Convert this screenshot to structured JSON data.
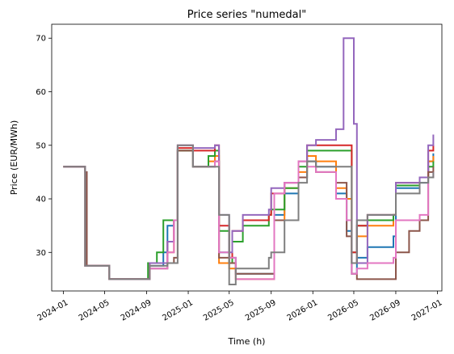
{
  "chart_data": {
    "type": "line",
    "title": "Price series \"numedal\"",
    "xlabel": "Time (h)",
    "ylabel": "Price (EUR/MWh)",
    "xlim": [
      "2023-11-28",
      "2027-01-14"
    ],
    "ylim": [
      22.8,
      72.6
    ],
    "x_ticks": [
      {
        "date": "2024-01-01",
        "label": "2024-01"
      },
      {
        "date": "2024-05-01",
        "label": "2024-05"
      },
      {
        "date": "2024-09-01",
        "label": "2024-09"
      },
      {
        "date": "2025-01-01",
        "label": "2025-01"
      },
      {
        "date": "2025-05-01",
        "label": "2025-05"
      },
      {
        "date": "2025-09-01",
        "label": "2025-09"
      },
      {
        "date": "2026-01-01",
        "label": "2026-01"
      },
      {
        "date": "2026-05-01",
        "label": "2026-05"
      },
      {
        "date": "2026-09-01",
        "label": "2026-09"
      },
      {
        "date": "2027-01-01",
        "label": "2027-01"
      }
    ],
    "y_ticks": [
      30,
      40,
      50,
      60,
      70
    ],
    "grid": false,
    "legend": "none",
    "line_style": "step",
    "series": [
      {
        "color": "#1f77b4",
        "points": [
          [
            "2024-01-01",
            46
          ],
          [
            "2024-03-01",
            46
          ],
          [
            "2024-03-05",
            27.5
          ],
          [
            "2024-05-10",
            27.5
          ],
          [
            "2024-05-15",
            25
          ],
          [
            "2024-09-01",
            25
          ],
          [
            "2024-09-10",
            27.5
          ],
          [
            "2024-10-20",
            30
          ],
          [
            "2024-11-01",
            35
          ],
          [
            "2024-11-20",
            36
          ],
          [
            "2024-12-01",
            49
          ],
          [
            "2025-01-10",
            49
          ],
          [
            "2025-01-15",
            46
          ],
          [
            "2025-03-20",
            47
          ],
          [
            "2025-04-01",
            30
          ],
          [
            "2025-05-01",
            29
          ],
          [
            "2025-05-20",
            26
          ],
          [
            "2025-09-01",
            26
          ],
          [
            "2025-09-10",
            37
          ],
          [
            "2025-10-10",
            41
          ],
          [
            "2025-11-20",
            44
          ],
          [
            "2025-12-15",
            47
          ],
          [
            "2026-01-10",
            46
          ],
          [
            "2026-03-10",
            41
          ],
          [
            "2026-04-10",
            34
          ],
          [
            "2026-04-25",
            26
          ],
          [
            "2026-05-10",
            29
          ],
          [
            "2026-06-10",
            31
          ],
          [
            "2026-08-25",
            33
          ],
          [
            "2026-09-01",
            42
          ],
          [
            "2026-11-10",
            43
          ],
          [
            "2026-12-05",
            47
          ],
          [
            "2026-12-20",
            48.5
          ]
        ]
      },
      {
        "color": "#ff7f0e",
        "points": [
          [
            "2024-01-01",
            46
          ],
          [
            "2024-03-01",
            46
          ],
          [
            "2024-03-05",
            27.5
          ],
          [
            "2024-05-10",
            27.5
          ],
          [
            "2024-05-15",
            25
          ],
          [
            "2024-09-01",
            25
          ],
          [
            "2024-09-10",
            28
          ],
          [
            "2024-11-01",
            30
          ],
          [
            "2024-11-20",
            36
          ],
          [
            "2024-12-01",
            49
          ],
          [
            "2025-01-10",
            49
          ],
          [
            "2025-01-15",
            46
          ],
          [
            "2025-03-01",
            47
          ],
          [
            "2025-03-20",
            48
          ],
          [
            "2025-04-01",
            28
          ],
          [
            "2025-05-01",
            27
          ],
          [
            "2025-05-20",
            25
          ],
          [
            "2025-09-01",
            25
          ],
          [
            "2025-09-10",
            36
          ],
          [
            "2025-10-10",
            42
          ],
          [
            "2025-11-20",
            45
          ],
          [
            "2025-12-15",
            48
          ],
          [
            "2026-01-10",
            47
          ],
          [
            "2026-03-10",
            42
          ],
          [
            "2026-04-10",
            40
          ],
          [
            "2026-04-25",
            28
          ],
          [
            "2026-05-10",
            33
          ],
          [
            "2026-06-10",
            35
          ],
          [
            "2026-08-25",
            37
          ],
          [
            "2026-09-01",
            42.5
          ],
          [
            "2026-11-10",
            44
          ],
          [
            "2026-12-05",
            47
          ],
          [
            "2026-12-20",
            48
          ]
        ]
      },
      {
        "color": "#2ca02c",
        "points": [
          [
            "2024-01-01",
            46
          ],
          [
            "2024-03-01",
            46
          ],
          [
            "2024-03-05",
            27.5
          ],
          [
            "2024-05-10",
            27.5
          ],
          [
            "2024-05-15",
            25
          ],
          [
            "2024-09-01",
            25
          ],
          [
            "2024-09-05",
            28
          ],
          [
            "2024-10-01",
            30
          ],
          [
            "2024-10-20",
            36
          ],
          [
            "2024-12-01",
            49
          ],
          [
            "2025-01-10",
            49
          ],
          [
            "2025-01-15",
            46
          ],
          [
            "2025-03-01",
            48
          ],
          [
            "2025-03-20",
            49
          ],
          [
            "2025-04-01",
            34
          ],
          [
            "2025-05-01",
            28
          ],
          [
            "2025-05-10",
            32
          ],
          [
            "2025-06-10",
            35
          ],
          [
            "2025-08-25",
            37
          ],
          [
            "2025-09-01",
            38
          ],
          [
            "2025-10-10",
            42
          ],
          [
            "2025-11-20",
            46
          ],
          [
            "2025-12-15",
            49
          ],
          [
            "2026-01-10",
            49
          ],
          [
            "2026-04-10",
            49
          ],
          [
            "2026-04-25",
            30
          ],
          [
            "2026-05-10",
            35
          ],
          [
            "2026-06-10",
            36
          ],
          [
            "2026-08-25",
            37
          ],
          [
            "2026-09-01",
            42.5
          ],
          [
            "2026-11-10",
            44
          ],
          [
            "2026-12-05",
            46
          ],
          [
            "2026-12-20",
            47
          ]
        ]
      },
      {
        "color": "#d62728",
        "points": [
          [
            "2024-01-01",
            46
          ],
          [
            "2024-03-01",
            46
          ],
          [
            "2024-03-05",
            27.5
          ],
          [
            "2024-05-10",
            27.5
          ],
          [
            "2024-05-15",
            25
          ],
          [
            "2024-09-01",
            25
          ],
          [
            "2024-09-10",
            28
          ],
          [
            "2024-11-01",
            32
          ],
          [
            "2024-11-20",
            36
          ],
          [
            "2024-12-01",
            49.5
          ],
          [
            "2025-01-10",
            49.5
          ],
          [
            "2025-01-15",
            49
          ],
          [
            "2025-03-20",
            50
          ],
          [
            "2025-04-01",
            35
          ],
          [
            "2025-05-01",
            29
          ],
          [
            "2025-05-10",
            34
          ],
          [
            "2025-06-10",
            36
          ],
          [
            "2025-08-25",
            37
          ],
          [
            "2025-09-01",
            41
          ],
          [
            "2025-10-10",
            43
          ],
          [
            "2025-11-20",
            47
          ],
          [
            "2025-12-15",
            50
          ],
          [
            "2026-01-10",
            50
          ],
          [
            "2026-04-10",
            50
          ],
          [
            "2026-04-25",
            30
          ],
          [
            "2026-05-10",
            35
          ],
          [
            "2026-06-10",
            37
          ],
          [
            "2026-08-25",
            37
          ],
          [
            "2026-09-01",
            43
          ],
          [
            "2026-11-10",
            44
          ],
          [
            "2026-12-05",
            49
          ],
          [
            "2026-12-20",
            50
          ]
        ]
      },
      {
        "color": "#9467bd",
        "points": [
          [
            "2024-01-01",
            46
          ],
          [
            "2024-03-01",
            46
          ],
          [
            "2024-03-05",
            27.5
          ],
          [
            "2024-05-10",
            27.5
          ],
          [
            "2024-05-15",
            25
          ],
          [
            "2024-09-01",
            25
          ],
          [
            "2024-09-10",
            28
          ],
          [
            "2024-11-01",
            32
          ],
          [
            "2024-11-20",
            36
          ],
          [
            "2024-12-01",
            50
          ],
          [
            "2025-01-10",
            50
          ],
          [
            "2025-01-15",
            49.5
          ],
          [
            "2025-03-20",
            50
          ],
          [
            "2025-04-01",
            37
          ],
          [
            "2025-05-01",
            30
          ],
          [
            "2025-05-10",
            34
          ],
          [
            "2025-06-10",
            37
          ],
          [
            "2025-08-25",
            38
          ],
          [
            "2025-09-01",
            42
          ],
          [
            "2025-10-10",
            43
          ],
          [
            "2025-11-20",
            47
          ],
          [
            "2025-12-15",
            50
          ],
          [
            "2026-01-10",
            51
          ],
          [
            "2026-03-10",
            53
          ],
          [
            "2026-04-01",
            70
          ],
          [
            "2026-04-25",
            70
          ],
          [
            "2026-05-01",
            54
          ],
          [
            "2026-05-10",
            28
          ],
          [
            "2026-06-10",
            37
          ],
          [
            "2026-08-25",
            37
          ],
          [
            "2026-09-01",
            43
          ],
          [
            "2026-11-10",
            44
          ],
          [
            "2026-12-05",
            50
          ],
          [
            "2026-12-20",
            52
          ]
        ]
      },
      {
        "color": "#8c564b",
        "points": [
          [
            "2024-01-01",
            46
          ],
          [
            "2024-03-01",
            46
          ],
          [
            "2024-03-05",
            45
          ],
          [
            "2024-03-10",
            27.5
          ],
          [
            "2024-05-10",
            27.5
          ],
          [
            "2024-05-15",
            25
          ],
          [
            "2024-09-01",
            25
          ],
          [
            "2024-09-10",
            27
          ],
          [
            "2024-11-01",
            28
          ],
          [
            "2024-11-20",
            29
          ],
          [
            "2024-12-01",
            49
          ],
          [
            "2025-01-10",
            49
          ],
          [
            "2025-01-15",
            46
          ],
          [
            "2025-03-20",
            47
          ],
          [
            "2025-04-01",
            29
          ],
          [
            "2025-05-01",
            28
          ],
          [
            "2025-05-20",
            26
          ],
          [
            "2025-09-01",
            26
          ],
          [
            "2025-09-10",
            36
          ],
          [
            "2025-11-20",
            44
          ],
          [
            "2025-12-15",
            47
          ],
          [
            "2026-01-10",
            45
          ],
          [
            "2026-03-10",
            43
          ],
          [
            "2026-04-10",
            33
          ],
          [
            "2026-04-25",
            26
          ],
          [
            "2026-05-10",
            25
          ],
          [
            "2026-08-25",
            25
          ],
          [
            "2026-09-01",
            30
          ],
          [
            "2026-10-10",
            34
          ],
          [
            "2026-11-10",
            36
          ],
          [
            "2026-12-05",
            45
          ],
          [
            "2026-12-20",
            46
          ]
        ]
      },
      {
        "color": "#e377c2",
        "points": [
          [
            "2024-01-01",
            46
          ],
          [
            "2024-03-01",
            46
          ],
          [
            "2024-03-05",
            27.5
          ],
          [
            "2024-05-10",
            27.5
          ],
          [
            "2024-05-15",
            25
          ],
          [
            "2024-09-01",
            25
          ],
          [
            "2024-09-10",
            27
          ],
          [
            "2024-11-01",
            30
          ],
          [
            "2024-11-20",
            36
          ],
          [
            "2024-12-01",
            50
          ],
          [
            "2025-01-10",
            50
          ],
          [
            "2025-01-15",
            46
          ],
          [
            "2025-03-20",
            47
          ],
          [
            "2025-04-01",
            30
          ],
          [
            "2025-05-01",
            29
          ],
          [
            "2025-05-20",
            25
          ],
          [
            "2025-09-01",
            25
          ],
          [
            "2025-09-10",
            41
          ],
          [
            "2025-10-10",
            43
          ],
          [
            "2025-11-20",
            47
          ],
          [
            "2025-12-15",
            46
          ],
          [
            "2026-01-10",
            45
          ],
          [
            "2026-03-10",
            40
          ],
          [
            "2026-04-10",
            36
          ],
          [
            "2026-04-25",
            26
          ],
          [
            "2026-05-10",
            27
          ],
          [
            "2026-06-10",
            28
          ],
          [
            "2026-08-25",
            29
          ],
          [
            "2026-09-01",
            36
          ],
          [
            "2026-11-10",
            37
          ],
          [
            "2026-12-05",
            44
          ],
          [
            "2026-12-20",
            45
          ]
        ]
      },
      {
        "color": "#7f7f7f",
        "points": [
          [
            "2024-01-01",
            46
          ],
          [
            "2024-03-01",
            46
          ],
          [
            "2024-03-05",
            27.5
          ],
          [
            "2024-05-10",
            27.5
          ],
          [
            "2024-05-15",
            25
          ],
          [
            "2024-09-01",
            25
          ],
          [
            "2024-09-10",
            27.5
          ],
          [
            "2024-11-01",
            28
          ],
          [
            "2024-11-20",
            28
          ],
          [
            "2024-12-01",
            50
          ],
          [
            "2025-01-10",
            50
          ],
          [
            "2025-01-15",
            46
          ],
          [
            "2025-03-20",
            46
          ],
          [
            "2025-04-01",
            37
          ],
          [
            "2025-05-01",
            24
          ],
          [
            "2025-05-20",
            27
          ],
          [
            "2025-08-25",
            29
          ],
          [
            "2025-09-01",
            30
          ],
          [
            "2025-10-10",
            36
          ],
          [
            "2025-11-20",
            43
          ],
          [
            "2025-12-15",
            47
          ],
          [
            "2026-01-10",
            46
          ],
          [
            "2026-04-10",
            46
          ],
          [
            "2026-04-25",
            28
          ],
          [
            "2026-05-10",
            36
          ],
          [
            "2026-06-10",
            37
          ],
          [
            "2026-08-25",
            37
          ],
          [
            "2026-09-01",
            41
          ],
          [
            "2026-11-10",
            43
          ],
          [
            "2026-12-05",
            44
          ],
          [
            "2026-12-20",
            45
          ]
        ]
      }
    ]
  }
}
